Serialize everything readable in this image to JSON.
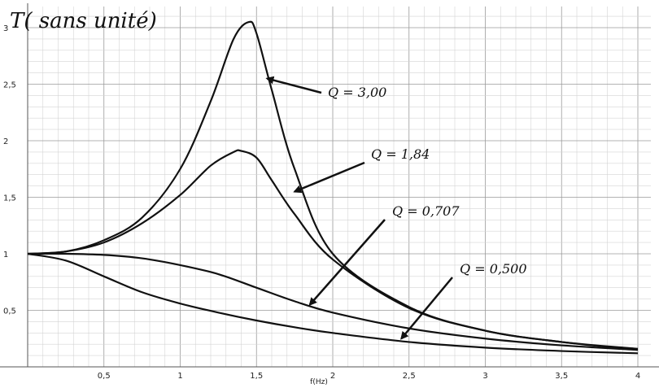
{
  "chart_data": {
    "type": "line",
    "title": "",
    "xlabel": "f(Hz)",
    "ylabel": "T( sans unité)",
    "xlim": [
      0,
      4.0
    ],
    "ylim": [
      0,
      3.2
    ],
    "grid": true,
    "x_ticks": [
      {
        "value": 0.5,
        "label": "0,5"
      },
      {
        "value": 1.0,
        "label": "1"
      },
      {
        "value": 1.5,
        "label": "1,5"
      },
      {
        "value": 2.0,
        "label": "2"
      },
      {
        "value": 2.5,
        "label": "2,5"
      },
      {
        "value": 3.0,
        "label": "3"
      },
      {
        "value": 3.5,
        "label": "3,5"
      },
      {
        "value": 4.0,
        "label": "4"
      }
    ],
    "y_ticks": [
      {
        "value": 0.5,
        "label": "0,5"
      },
      {
        "value": 1.0,
        "label": "1"
      },
      {
        "value": 1.5,
        "label": "1,5"
      },
      {
        "value": 2.0,
        "label": "2"
      },
      {
        "value": 2.5,
        "label": "2,5"
      },
      {
        "value": 3.0,
        "label": "3"
      }
    ],
    "series": [
      {
        "name": "Q = 3,00",
        "x": [
          0,
          0.25,
          0.5,
          0.75,
          1.0,
          1.2,
          1.35,
          1.45,
          1.5,
          1.6,
          1.75,
          2.0,
          2.5,
          3.0,
          3.5,
          4.0
        ],
        "y": [
          1.0,
          1.02,
          1.12,
          1.32,
          1.75,
          2.35,
          2.9,
          3.05,
          2.95,
          2.45,
          1.75,
          1.0,
          0.53,
          0.32,
          0.22,
          0.16
        ]
      },
      {
        "name": "Q = 1,84",
        "x": [
          0,
          0.25,
          0.5,
          0.75,
          1.0,
          1.2,
          1.35,
          1.4,
          1.5,
          1.6,
          1.75,
          2.0,
          2.5,
          3.0,
          3.5,
          4.0
        ],
        "y": [
          1.0,
          1.02,
          1.1,
          1.27,
          1.52,
          1.78,
          1.9,
          1.91,
          1.85,
          1.65,
          1.35,
          0.95,
          0.52,
          0.32,
          0.22,
          0.15
        ]
      },
      {
        "name": "Q = 0,707",
        "x": [
          0,
          0.25,
          0.5,
          0.75,
          1.0,
          1.25,
          1.5,
          1.75,
          2.0,
          2.5,
          3.0,
          3.5,
          4.0
        ],
        "y": [
          1.0,
          1.0,
          0.99,
          0.96,
          0.9,
          0.82,
          0.7,
          0.58,
          0.48,
          0.34,
          0.25,
          0.19,
          0.15
        ]
      },
      {
        "name": "Q = 0,500",
        "x": [
          0,
          0.25,
          0.5,
          0.75,
          1.0,
          1.25,
          1.5,
          1.75,
          2.0,
          2.5,
          3.0,
          3.5,
          4.0
        ],
        "y": [
          1.0,
          0.94,
          0.8,
          0.66,
          0.56,
          0.48,
          0.41,
          0.35,
          0.3,
          0.22,
          0.17,
          0.14,
          0.12
        ]
      }
    ],
    "annotations": [
      {
        "text": "Q = 3,00",
        "series": "Q = 3,00",
        "arrow_target": [
          1.57,
          2.55
        ]
      },
      {
        "text": "Q = 1,84",
        "series": "Q = 1,84",
        "arrow_target": [
          1.75,
          1.55
        ]
      },
      {
        "text": "Q = 0,707",
        "series": "Q = 0,707",
        "arrow_target": [
          1.85,
          0.55
        ]
      },
      {
        "text": "Q = 0,500",
        "series": "Q = 0,500",
        "arrow_target": [
          2.45,
          0.25
        ]
      }
    ]
  }
}
